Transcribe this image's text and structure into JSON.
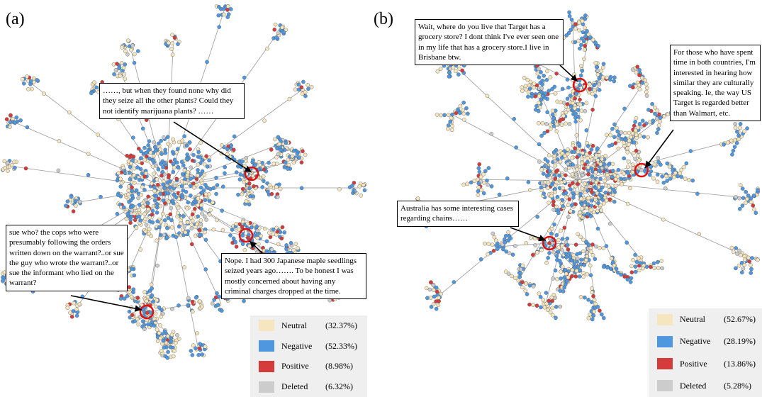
{
  "panels": [
    {
      "label": "(a)",
      "annotations": [
        {
          "text": "……, but when they found none why did they seize all the other plants? Could they not identify marijuana plants? ……"
        },
        {
          "text": "sue who? the cops who were presumably following the orders written down on the warrant?..or sue the guy who wrote the warrant?..or sue the informant who lied on the warrant?"
        },
        {
          "text": "Nope. I had 300 Japanese maple seedlings seized years ago……. To be honest I was mostly concerned about having any criminal charges dropped at the time."
        }
      ],
      "legend": [
        {
          "name": "Neutral",
          "share": "(32.37%)",
          "color": "#f5e6bf"
        },
        {
          "name": "Negative",
          "share": "(52.33%)",
          "color": "#4f97de"
        },
        {
          "name": "Positive",
          "share": "(8.98%)",
          "color": "#d53b3b"
        },
        {
          "name": "Deleted",
          "share": "(6.32%)",
          "color": "#cccccc"
        }
      ]
    },
    {
      "label": "(b)",
      "annotations": [
        {
          "text": "Wait, where do you live that Target has a grocery store? I dont think I've ever seen one in my life that has a grocery store.I live in Brisbane btw."
        },
        {
          "text": "For those who have spent time in both countries, I'm interested in hearing how similar they are culturally speaking. Ie, the way US Target is regarded better than Walmart, etc."
        },
        {
          "text": "Australia has some interesting cases regarding chains……"
        }
      ],
      "legend": [
        {
          "name": "Neutral",
          "share": "(52.67%)",
          "color": "#f5e6bf"
        },
        {
          "name": "Negative",
          "share": "(28.19%)",
          "color": "#4f97de"
        },
        {
          "name": "Positive",
          "share": "(13.86%)",
          "color": "#d53b3b"
        },
        {
          "name": "Deleted",
          "share": "(5.28%)",
          "color": "#cccccc"
        }
      ]
    }
  ]
}
